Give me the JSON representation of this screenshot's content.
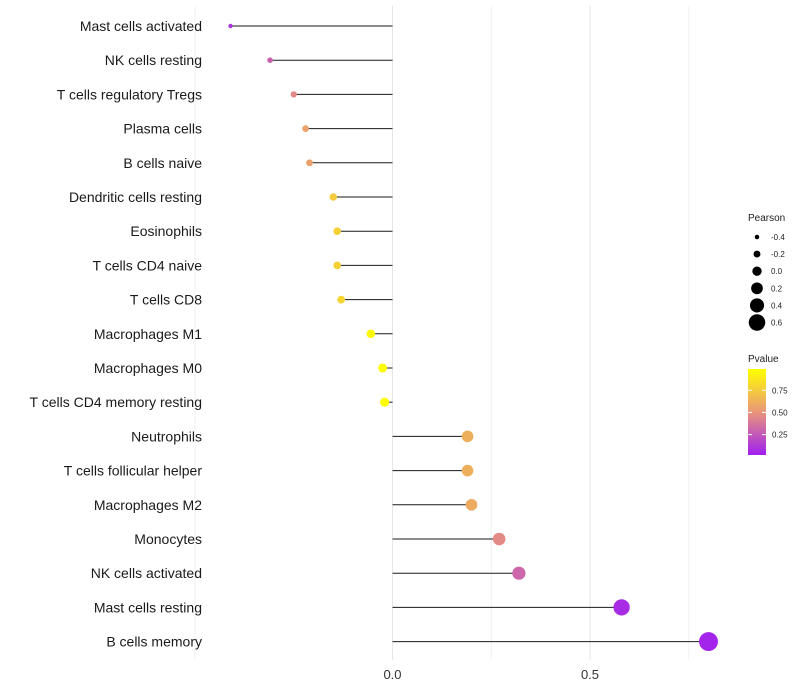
{
  "chart_data": {
    "type": "lollipop",
    "title": "",
    "xlabel": "",
    "ylabel": "",
    "xlim": [
      -0.5,
      0.83
    ],
    "x_ticks": [
      0.0,
      0.5
    ],
    "x_tick_labels": [
      "0.0",
      "0.5"
    ],
    "grid": true,
    "legend_position": "right",
    "categories": [
      "Mast cells activated",
      "NK cells resting",
      "T cells regulatory  Tregs",
      "Plasma cells",
      "B cells naive",
      "Dendritic cells resting",
      "Eosinophils",
      "T cells CD4 naive",
      "T cells CD8",
      "Macrophages M1",
      "Macrophages M0",
      "T cells CD4 memory resting",
      "Neutrophils",
      "T cells follicular helper",
      "Macrophages M2",
      "Monocytes",
      "NK cells activated",
      "Mast cells resting",
      "B cells memory"
    ],
    "pearson": [
      -0.41,
      -0.31,
      -0.25,
      -0.22,
      -0.21,
      -0.15,
      -0.14,
      -0.14,
      -0.13,
      -0.055,
      -0.025,
      -0.02,
      0.19,
      0.19,
      0.2,
      0.27,
      0.32,
      0.58,
      0.8
    ],
    "pvalue": [
      0.08,
      0.28,
      0.45,
      0.55,
      0.55,
      0.75,
      0.78,
      0.78,
      0.8,
      0.97,
      0.99,
      0.99,
      0.62,
      0.62,
      0.6,
      0.45,
      0.3,
      0.05,
      0.02
    ],
    "size_legend": {
      "title": "Pearson",
      "values": [
        -0.4,
        -0.2,
        0.0,
        0.2,
        0.4,
        0.6
      ],
      "labels": [
        "-0.4",
        "-0.2",
        "0.0",
        "0.2",
        "0.4",
        "0.6"
      ]
    },
    "color_legend": {
      "title": "Pvalue",
      "range": [
        0.02,
        0.99
      ],
      "ticks": [
        0.75,
        0.5,
        0.25
      ],
      "labels": [
        "0.75",
        "0.50",
        "0.25"
      ],
      "color_low": "#a020f0",
      "color_mid": "#e9967a",
      "color_high": "#ffff00"
    }
  }
}
